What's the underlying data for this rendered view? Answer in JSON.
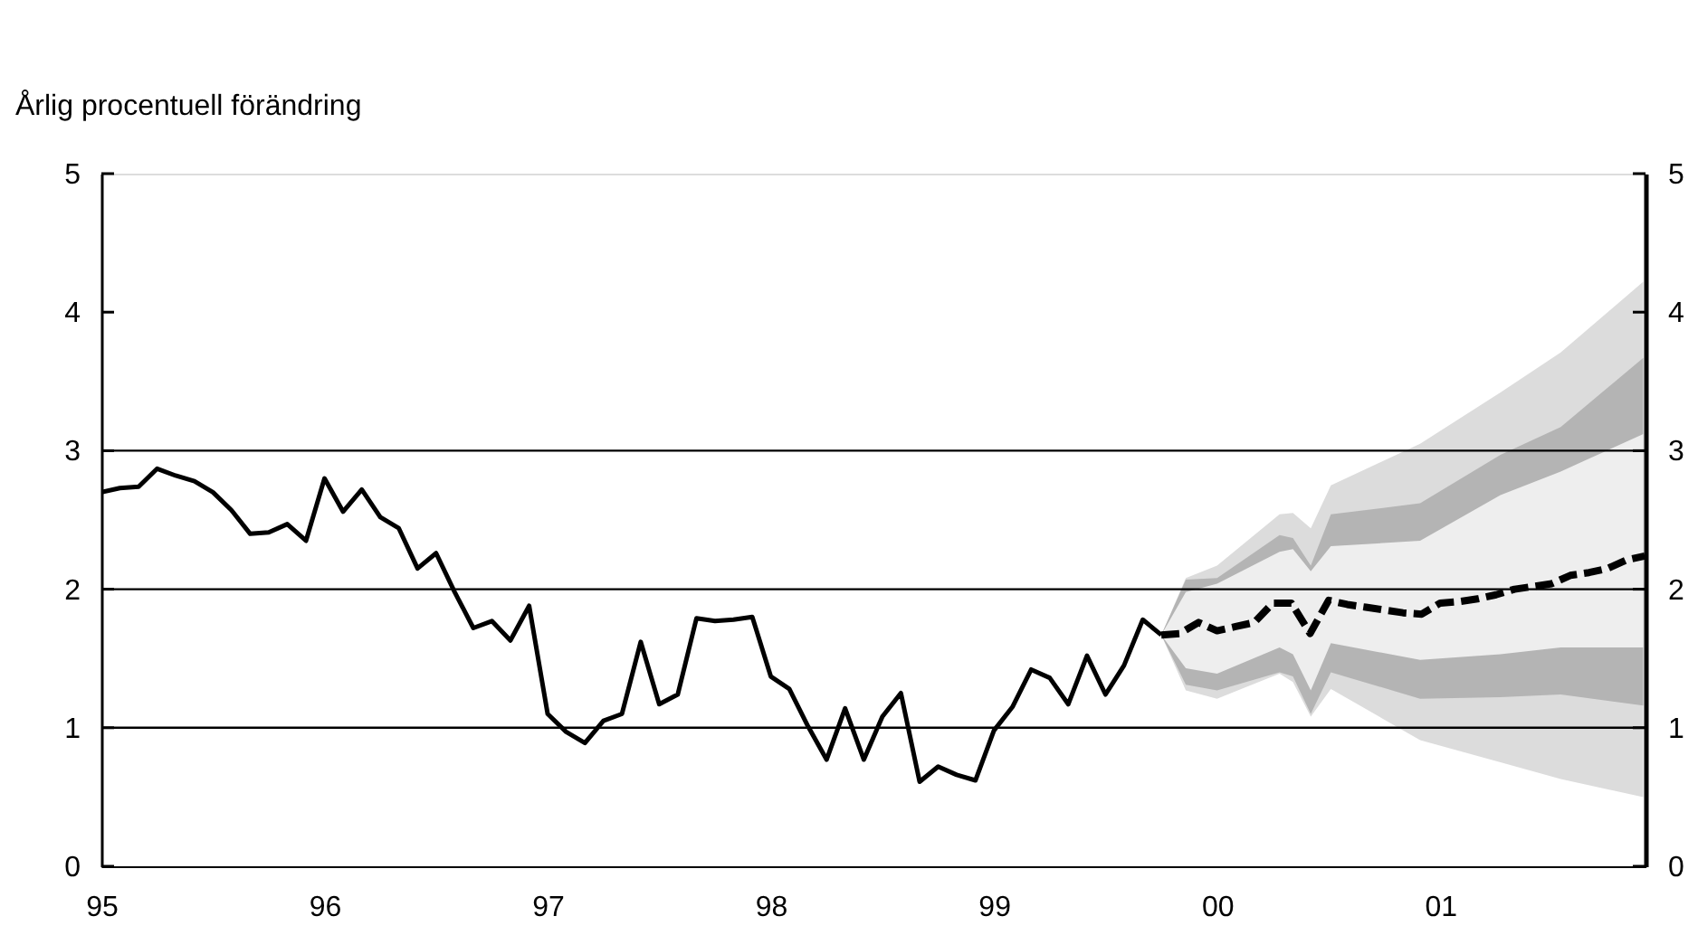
{
  "chart_data": {
    "type": "line",
    "ylabel": "Årlig procentuell förändring",
    "xlim": [
      1995,
      2001.92
    ],
    "xticks": [
      {
        "value": 1995,
        "label": "95"
      },
      {
        "value": 1996,
        "label": "96"
      },
      {
        "value": 1997,
        "label": "97"
      },
      {
        "value": 1998,
        "label": "98"
      },
      {
        "value": 1999,
        "label": "99"
      },
      {
        "value": 2000,
        "label": "00"
      },
      {
        "value": 2001,
        "label": "01"
      }
    ],
    "ylim": [
      0,
      5
    ],
    "yticks": [
      0,
      1,
      2,
      3,
      4,
      5
    ],
    "y2lim": [
      0,
      5
    ],
    "y2ticks": [
      0,
      1,
      2,
      3,
      4,
      5
    ],
    "grid": false,
    "ref_lines": [
      {
        "axis": "y",
        "value": 1,
        "color": "#000000"
      },
      {
        "axis": "y",
        "value": 2,
        "color": "#000000"
      },
      {
        "axis": "y",
        "value": 3,
        "color": "#000000"
      }
    ],
    "series": [
      {
        "type": "area",
        "color": "#dcdcdc",
        "x": [
          1999.75,
          1999.86,
          2000.0,
          2000.28,
          2000.34,
          2000.42,
          2000.51,
          2000.91,
          2001.27,
          2001.54,
          2001.91
        ],
        "values": [
          null,
          null,
          null,
          null,
          null,
          null,
          null,
          null,
          null,
          null,
          null
        ],
        "lower": [
          1.67,
          1.27,
          1.21,
          1.39,
          1.33,
          1.08,
          1.28,
          0.91,
          0.75,
          0.63,
          0.5
        ],
        "upper": [
          1.67,
          2.08,
          2.17,
          2.54,
          2.55,
          2.44,
          2.75,
          3.05,
          3.42,
          3.71,
          4.22
        ]
      },
      {
        "type": "area",
        "color": "#b4b4b4",
        "x": [
          1999.75,
          1999.86,
          2000.0,
          2000.28,
          2000.34,
          2000.42,
          2000.51,
          2000.91,
          2001.27,
          2001.54,
          2001.91
        ],
        "values": [
          null,
          null,
          null,
          null,
          null,
          null,
          null,
          null,
          null,
          null,
          null
        ],
        "lower": [
          1.67,
          1.31,
          1.27,
          1.4,
          1.37,
          1.1,
          1.4,
          1.21,
          1.22,
          1.24,
          1.16
        ],
        "upper": [
          1.67,
          2.07,
          2.08,
          2.39,
          2.37,
          2.17,
          2.54,
          2.62,
          2.97,
          3.17,
          3.67
        ]
      },
      {
        "type": "area",
        "color": "#eeeeee",
        "x": [
          1999.75,
          1999.86,
          2000.0,
          2000.28,
          2000.34,
          2000.42,
          2000.51,
          2000.91,
          2001.27,
          2001.54,
          2001.91
        ],
        "values": [
          null,
          null,
          null,
          null,
          null,
          null,
          null,
          null,
          null,
          null,
          null
        ],
        "lower": [
          1.67,
          1.43,
          1.39,
          1.58,
          1.53,
          1.27,
          1.61,
          1.49,
          1.53,
          1.58,
          1.58
        ],
        "upper": [
          1.67,
          1.98,
          2.04,
          2.27,
          2.29,
          2.13,
          2.31,
          2.35,
          2.68,
          2.85,
          3.12
        ]
      },
      {
        "color": "#000000",
        "line_style": "solid",
        "x": [
          1995.0,
          1995.083,
          1995.167,
          1995.25,
          1995.333,
          1995.417,
          1995.5,
          1995.583,
          1995.667,
          1995.75,
          1995.833,
          1995.917,
          1996.0,
          1996.083,
          1996.167,
          1996.25,
          1996.333,
          1996.417,
          1996.5,
          1996.583,
          1996.667,
          1996.75,
          1996.833,
          1996.917,
          1997.0,
          1997.083,
          1997.167,
          1997.25,
          1997.333,
          1997.417,
          1997.5,
          1997.583,
          1997.667,
          1997.75,
          1997.833,
          1997.917,
          1998.0,
          1998.083,
          1998.167,
          1998.25,
          1998.333,
          1998.417,
          1998.5,
          1998.583,
          1998.667,
          1998.75,
          1998.833,
          1998.917,
          1999.0,
          1999.083,
          1999.167,
          1999.25,
          1999.333,
          1999.417,
          1999.5,
          1999.583,
          1999.667,
          1999.75
        ],
        "values": [
          2.7,
          2.73,
          2.74,
          2.87,
          2.82,
          2.78,
          2.7,
          2.57,
          2.4,
          2.41,
          2.47,
          2.35,
          2.8,
          2.56,
          2.72,
          2.52,
          2.44,
          2.15,
          2.26,
          1.98,
          1.72,
          1.77,
          1.63,
          1.88,
          1.1,
          0.97,
          0.89,
          1.05,
          1.1,
          1.62,
          1.17,
          1.24,
          1.79,
          1.77,
          1.78,
          1.8,
          1.37,
          1.28,
          1.01,
          0.77,
          1.14,
          0.77,
          1.08,
          1.25,
          0.61,
          0.72,
          0.66,
          0.62,
          0.98,
          1.15,
          1.42,
          1.36,
          1.17,
          1.52,
          1.24,
          1.45,
          1.78,
          1.67
        ]
      },
      {
        "color": "#000000",
        "line_style": "dashed",
        "x": [
          1999.75,
          1999.833,
          1999.917,
          2000.0,
          2000.083,
          2000.167,
          2000.25,
          2000.333,
          2000.417,
          2000.5,
          2000.583,
          2000.667,
          2000.75,
          2000.833,
          2000.917,
          2001.0,
          2001.083,
          2001.167,
          2001.25,
          2001.333,
          2001.417,
          2001.5,
          2001.583,
          2001.667,
          2001.75,
          2001.833,
          2001.917
        ],
        "values": [
          1.67,
          1.68,
          1.76,
          1.7,
          1.73,
          1.76,
          1.9,
          1.9,
          1.68,
          1.92,
          1.89,
          1.87,
          1.85,
          1.83,
          1.82,
          1.9,
          1.91,
          1.93,
          1.96,
          2.0,
          2.02,
          2.04,
          2.1,
          2.12,
          2.15,
          2.21,
          2.24
        ]
      }
    ]
  }
}
